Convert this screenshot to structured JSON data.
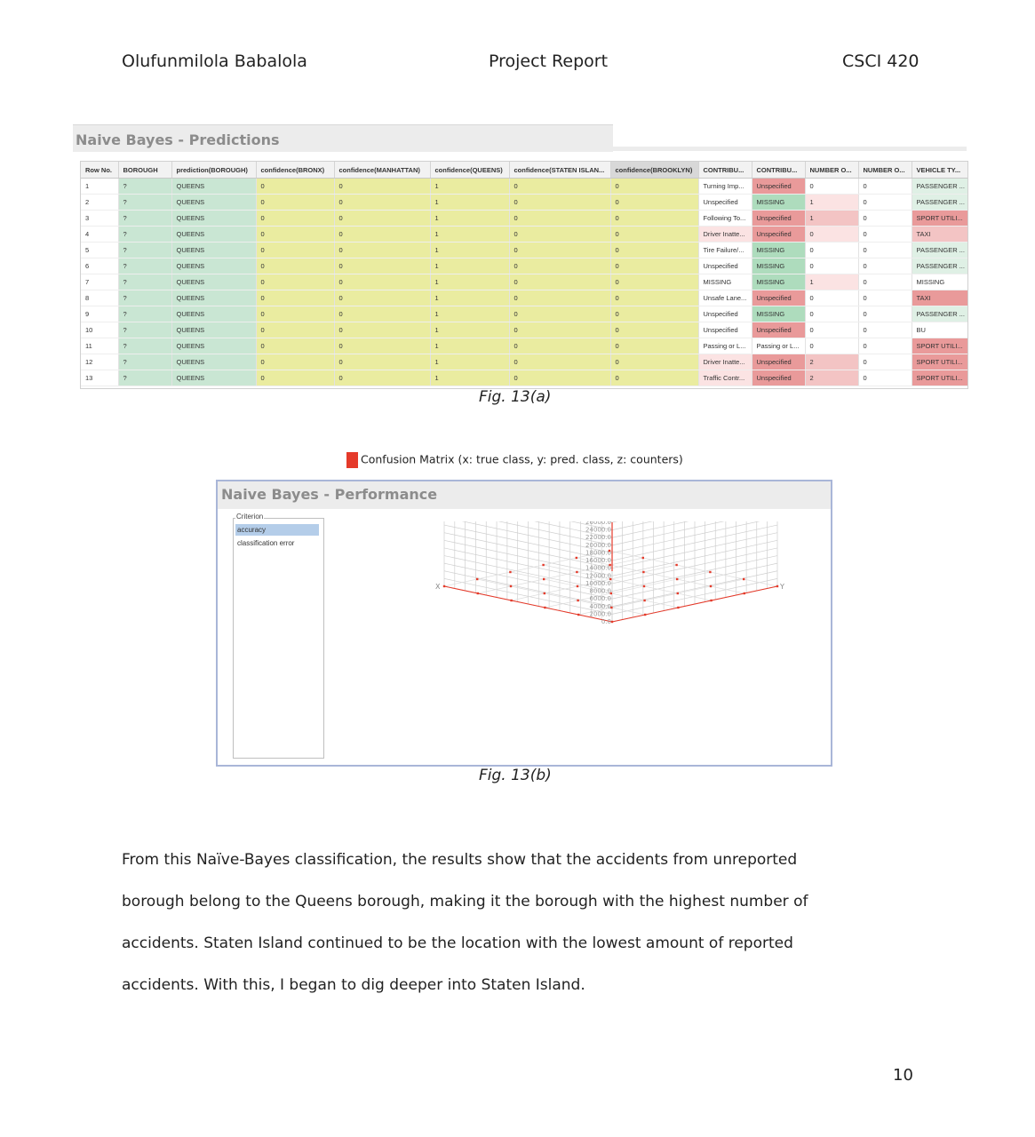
{
  "header": {
    "author": "Olufunmilola Babalola",
    "title": "Project Report",
    "course": "CSCI 420"
  },
  "predictions_panel": {
    "title": "Naive Bayes - Predictions",
    "columns": [
      "Row No.",
      "BOROUGH",
      "prediction(BOROUGH)",
      "confidence(BRONX)",
      "confidence(MANHATTAN)",
      "confidence(QUEENS)",
      "confidence(STATEN ISLAN...",
      "confidence(BROOKLYN)",
      "CONTRIBU...",
      "CONTRIBU...",
      "NUMBER O...",
      "NUMBER O...",
      "VEHICLE TY..."
    ],
    "rows": [
      [
        "1",
        "?",
        "QUEENS",
        "0",
        "0",
        "1",
        "0",
        "0",
        "Turning Imp...",
        "Unspecified",
        "0",
        "0",
        "PASSENGER ..."
      ],
      [
        "2",
        "?",
        "QUEENS",
        "0",
        "0",
        "1",
        "0",
        "0",
        "Unspecified",
        "MISSING",
        "1",
        "0",
        "PASSENGER ..."
      ],
      [
        "3",
        "?",
        "QUEENS",
        "0",
        "0",
        "1",
        "0",
        "0",
        "Following To...",
        "Unspecified",
        "1",
        "0",
        "SPORT UTILI..."
      ],
      [
        "4",
        "?",
        "QUEENS",
        "0",
        "0",
        "1",
        "0",
        "0",
        "Driver Inatte...",
        "Unspecified",
        "0",
        "0",
        "TAXI"
      ],
      [
        "5",
        "?",
        "QUEENS",
        "0",
        "0",
        "1",
        "0",
        "0",
        "Tire Failure/...",
        "MISSING",
        "0",
        "0",
        "PASSENGER ..."
      ],
      [
        "6",
        "?",
        "QUEENS",
        "0",
        "0",
        "1",
        "0",
        "0",
        "Unspecified",
        "MISSING",
        "0",
        "0",
        "PASSENGER ..."
      ],
      [
        "7",
        "?",
        "QUEENS",
        "0",
        "0",
        "1",
        "0",
        "0",
        "MISSING",
        "MISSING",
        "1",
        "0",
        "MISSING"
      ],
      [
        "8",
        "?",
        "QUEENS",
        "0",
        "0",
        "1",
        "0",
        "0",
        "Unsafe Lane...",
        "Unspecified",
        "0",
        "0",
        "TAXI"
      ],
      [
        "9",
        "?",
        "QUEENS",
        "0",
        "0",
        "1",
        "0",
        "0",
        "Unspecified",
        "MISSING",
        "0",
        "0",
        "PASSENGER ..."
      ],
      [
        "10",
        "?",
        "QUEENS",
        "0",
        "0",
        "1",
        "0",
        "0",
        "Unspecified",
        "Unspecified",
        "0",
        "0",
        "BU"
      ],
      [
        "11",
        "?",
        "QUEENS",
        "0",
        "0",
        "1",
        "0",
        "0",
        "Passing or L...",
        "Passing or L...",
        "0",
        "0",
        "SPORT UTILI..."
      ],
      [
        "12",
        "?",
        "QUEENS",
        "0",
        "0",
        "1",
        "0",
        "0",
        "Driver Inatte...",
        "Unspecified",
        "2",
        "0",
        "SPORT UTILI..."
      ],
      [
        "13",
        "?",
        "QUEENS",
        "0",
        "0",
        "1",
        "0",
        "0",
        "Traffic Contr...",
        "Unspecified",
        "2",
        "0",
        "SPORT UTILI..."
      ]
    ],
    "cell_colors": {
      "row_no": "#ffffff",
      "borough": "#c9e6d3",
      "prediction": "#c9e6d3",
      "confidence": "#eaeca0",
      "contrib_1": [
        "#ffffff",
        "#ffffff",
        "#ffffff",
        "#fbe3e3",
        "#ffffff",
        "#ffffff",
        "#ffffff",
        "#ffffff",
        "#ffffff",
        "#ffffff",
        "#ffffff",
        "#fbe3e3",
        "#fbe3e3"
      ],
      "contrib_2": [
        "#e99a9a",
        "#aedcbd",
        "#e99a9a",
        "#e99a9a",
        "#aedcbd",
        "#aedcbd",
        "#aedcbd",
        "#e99a9a",
        "#aedcbd",
        "#e99a9a",
        "#ffffff",
        "#e99a9a",
        "#e99a9a"
      ],
      "number_1": [
        "#ffffff",
        "#fbe3e3",
        "#f3c4c4",
        "#fbe3e3",
        "#ffffff",
        "#ffffff",
        "#fbe3e3",
        "#ffffff",
        "#ffffff",
        "#ffffff",
        "#ffffff",
        "#f3c4c4",
        "#f3c4c4"
      ],
      "number_2": "#ffffff",
      "vehicle": [
        "#dff0e5",
        "#dff0e5",
        "#e99a9a",
        "#f3c4c4",
        "#dff0e5",
        "#dff0e5",
        "#ffffff",
        "#e99a9a",
        "#dff0e5",
        "#ffffff",
        "#e99a9a",
        "#e99a9a",
        "#e99a9a"
      ]
    }
  },
  "fig_a_caption": "Fig. 13(a)",
  "performance_panel": {
    "legend": "Confusion Matrix (x: true class,  y: pred. class,  z: counters)",
    "legend_color": "#e53a2a",
    "title": "Naive Bayes - Performance",
    "criterion_label": "Criterion",
    "criteria": [
      "accuracy",
      "classification error"
    ],
    "selected_criterion": "accuracy",
    "chart_data": {
      "type": "scatter",
      "x_axis_label": "X",
      "y_axis_label": "Y",
      "z_ticks": [
        "0.0",
        "2000.0",
        "4000.0",
        "6000.0",
        "8000.0",
        "10000.0",
        "12000.0",
        "14000.0",
        "16000.0",
        "18000.0",
        "20000.0",
        "22000.0",
        "24000.0",
        "26000.0"
      ],
      "z_range": [
        0,
        26000
      ],
      "grid": true,
      "point_color": "#e53a2a"
    }
  },
  "fig_b_caption": "Fig. 13(b)",
  "body_text": [
    "From this Naïve-Bayes classification, the results show that the accidents from unreported",
    "borough belong to the Queens borough, making it the borough with the highest number of",
    "accidents. Staten Island continued to be the location with the lowest amount of reported",
    "accidents. With this, I began to dig deeper into Staten Island."
  ],
  "page_number": "10"
}
